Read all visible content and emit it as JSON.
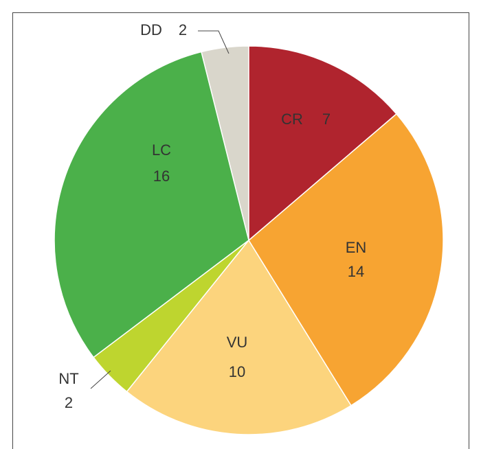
{
  "chart_data": {
    "type": "pie",
    "categories": [
      "CR",
      "EN",
      "VU",
      "NT",
      "LC",
      "DD"
    ],
    "values": [
      7,
      14,
      10,
      2,
      16,
      2
    ],
    "colors": [
      "#b0242e",
      "#f7a432",
      "#fcd47d",
      "#bed52f",
      "#4bb04a",
      "#d9d6cb"
    ]
  }
}
